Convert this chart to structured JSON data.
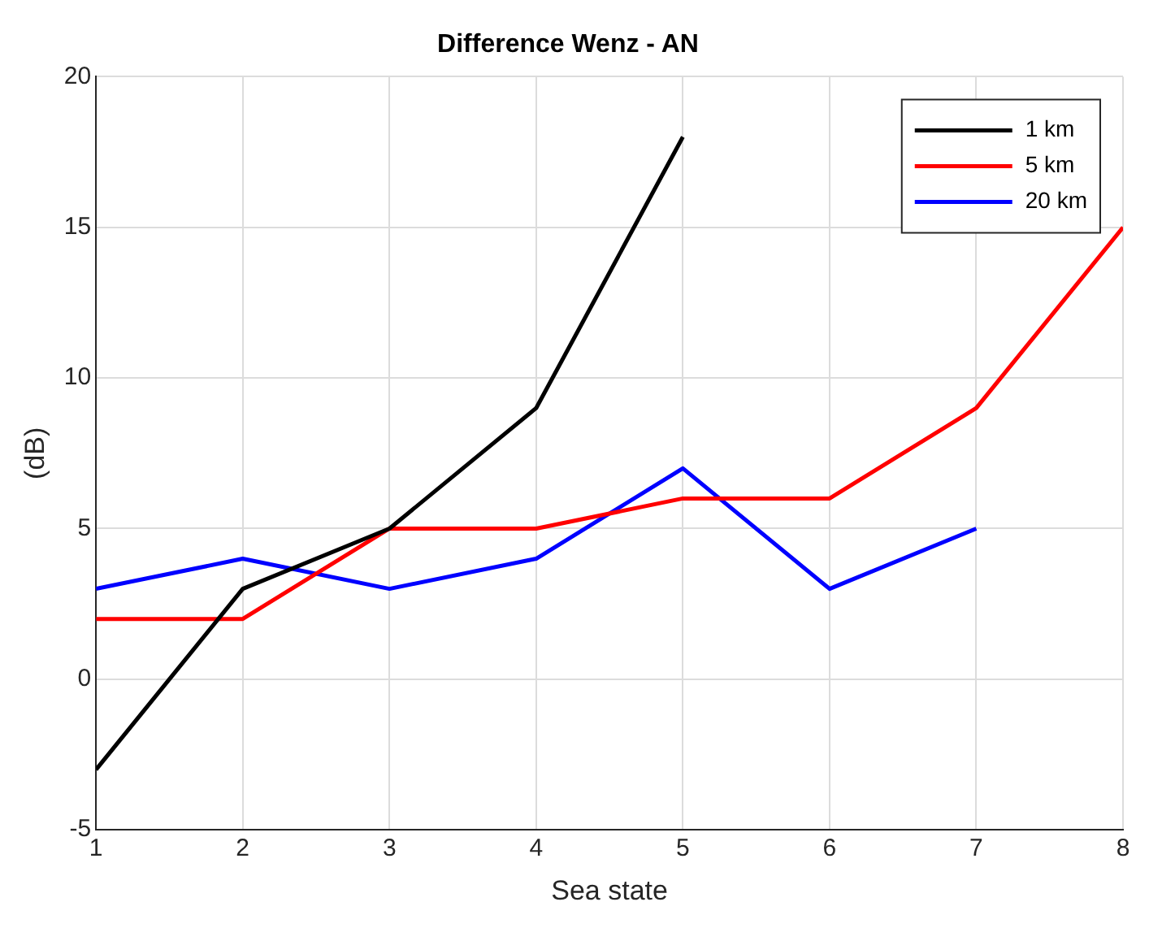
{
  "chart_data": {
    "type": "line",
    "title": "Difference Wenz - AN",
    "xlabel": "Sea state",
    "ylabel": "(dB)",
    "xlim": [
      1,
      8
    ],
    "xticks": [
      1,
      2,
      3,
      4,
      5,
      6,
      7,
      8
    ],
    "ylim": [
      -5,
      20
    ],
    "yticks": [
      -5,
      0,
      5,
      10,
      15,
      20
    ],
    "grid": true,
    "legend": "top right",
    "series": [
      {
        "name": "1 km",
        "color": "#000000",
        "x": [
          1,
          2,
          3,
          4,
          5
        ],
        "values": [
          -3,
          3,
          5,
          9,
          18
        ]
      },
      {
        "name": "5 km",
        "color": "#ff0000",
        "x": [
          1,
          2,
          3,
          4,
          5,
          6,
          7,
          8
        ],
        "values": [
          2,
          2,
          5,
          5,
          6,
          6,
          9,
          15
        ]
      },
      {
        "name": "20 km",
        "color": "#0000ff",
        "x": [
          1,
          2,
          3,
          4,
          5,
          6,
          7
        ],
        "values": [
          3,
          4,
          3,
          4,
          7,
          3,
          5
        ]
      }
    ]
  }
}
